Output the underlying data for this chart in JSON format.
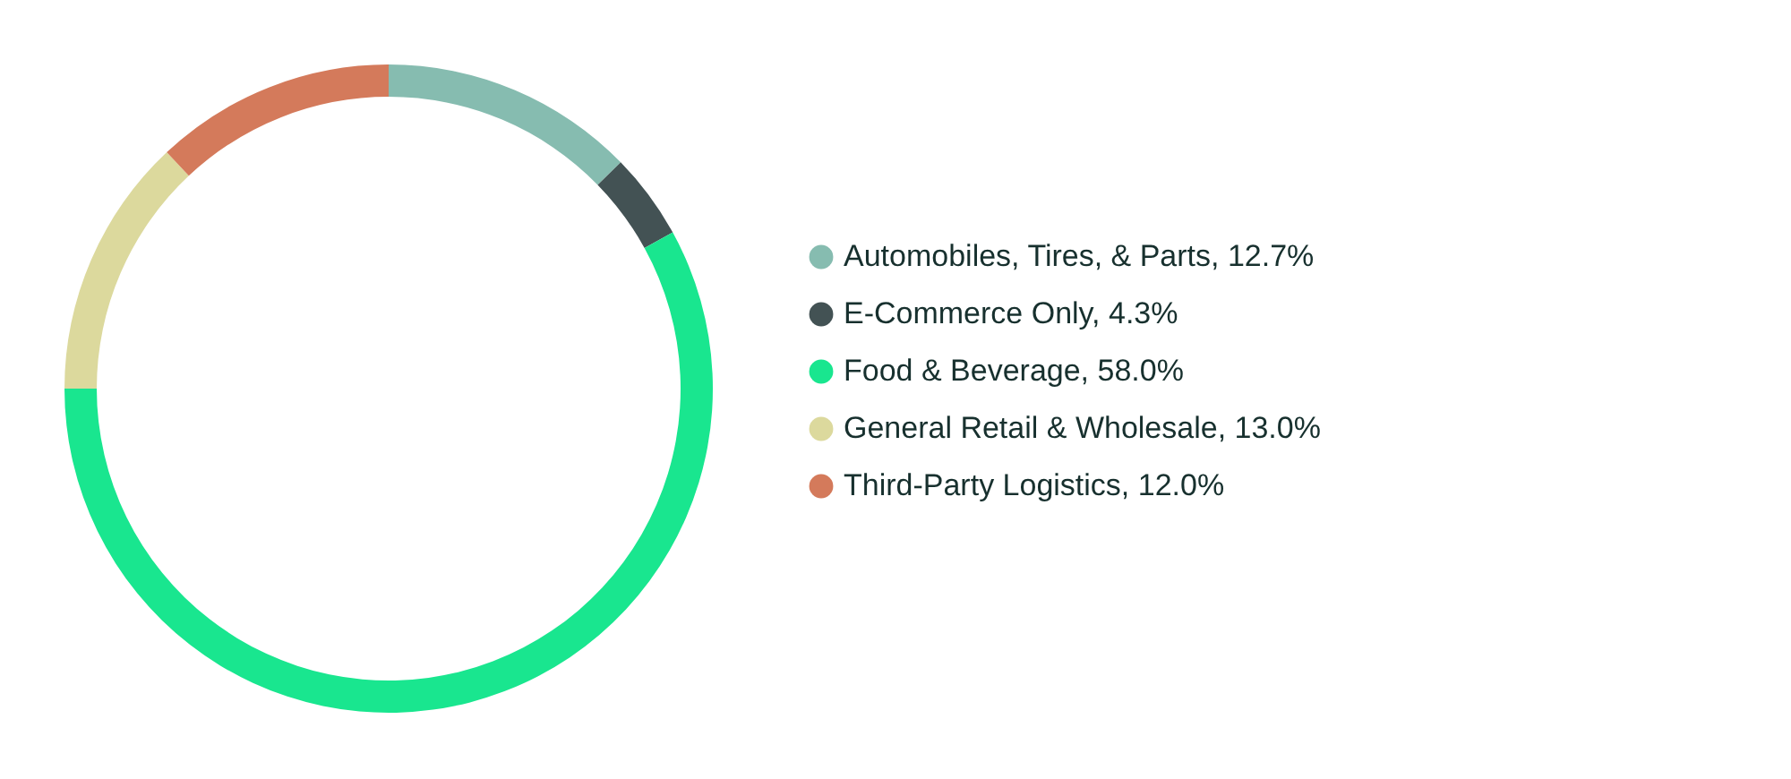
{
  "chart_data": {
    "type": "donut",
    "categories": [
      "Automobiles, Tires, & Parts",
      "E-Commerce Only",
      "Food & Beverage",
      "General Retail & Wholesale",
      "Third-Party Logistics"
    ],
    "values": [
      12.7,
      4.3,
      58.0,
      13.0,
      12.0
    ],
    "value_labels": [
      "12.7%",
      "4.3%",
      "58.0%",
      "13.0%",
      "12.0%"
    ],
    "colors": [
      "#86bcb0",
      "#435254",
      "#19e68f",
      "#dcd99d",
      "#d47a5b"
    ],
    "legend": "right"
  }
}
